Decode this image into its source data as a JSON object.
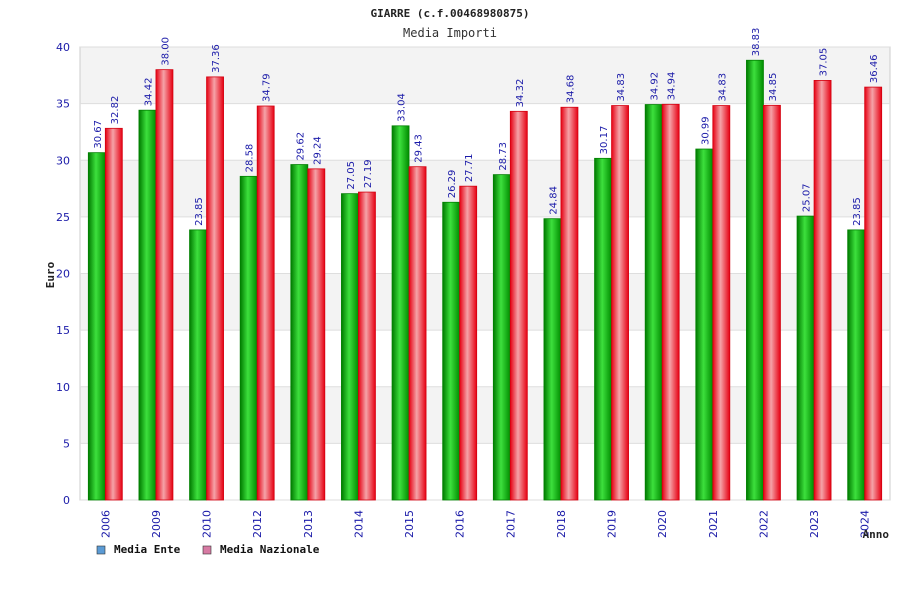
{
  "chart_data": {
    "type": "bar",
    "title": "GIARRE (c.f.00468980875)",
    "subtitle": "Media Importi",
    "xlabel": "Anno",
    "ylabel": "Euro",
    "ylim": [
      0,
      40
    ],
    "yticks": [
      "0",
      "5",
      "10",
      "15",
      "20",
      "25",
      "30",
      "35",
      "40"
    ],
    "categories": [
      "2006",
      "2009",
      "2010",
      "2012",
      "2013",
      "2014",
      "2015",
      "2016",
      "2017",
      "2018",
      "2019",
      "2020",
      "2021",
      "2022",
      "2023",
      "2024"
    ],
    "series": [
      {
        "name": "Media Ente",
        "legend_color": "#5b9bd5",
        "color": "#00b400",
        "values": [
          30.67,
          34.42,
          23.85,
          28.58,
          29.62,
          27.05,
          33.04,
          26.29,
          28.73,
          24.84,
          30.17,
          34.92,
          30.99,
          38.83,
          25.07,
          23.85
        ],
        "labels": [
          "30.67",
          "34.42",
          "23.85",
          "28.58",
          "29.62",
          "27.05",
          "33.04",
          "26.29",
          "28.73",
          "24.84",
          "30.17",
          "34.92",
          "30.99",
          "38.83",
          "25.07",
          "23.85"
        ]
      },
      {
        "name": "Media Nazionale",
        "legend_color": "#d77aa3",
        "color": "#e8141e",
        "values": [
          32.82,
          38.0,
          37.36,
          34.79,
          29.24,
          27.19,
          29.43,
          27.71,
          34.32,
          34.68,
          34.83,
          34.94,
          34.83,
          34.85,
          37.05,
          36.46
        ],
        "labels": [
          "32.82",
          "38.00",
          "37.36",
          "34.79",
          "29.24",
          "27.19",
          "29.43",
          "27.71",
          "34.32",
          "34.68",
          "34.83",
          "34.94",
          "34.83",
          "34.85",
          "37.05",
          "36.46"
        ]
      }
    ],
    "grid": true,
    "legend_position": "bottom-left"
  }
}
